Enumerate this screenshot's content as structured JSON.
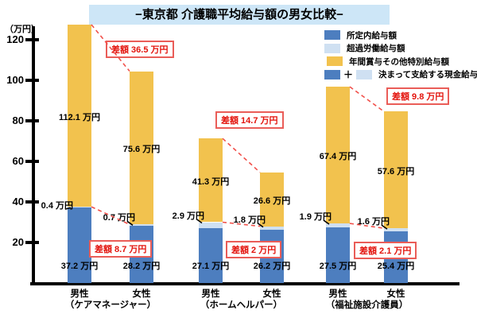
{
  "title": "−東京都 介護職平均給与額の男女比較−",
  "y_axis": {
    "unit_label": "（万円）"
  },
  "legend": {
    "items": [
      {
        "label": "所定内給与額",
        "swatches": [
          "base"
        ]
      },
      {
        "label": "超過労働給与額",
        "swatches": [
          "overtime"
        ]
      },
      {
        "label": "年間賞与その他特別給与額",
        "swatches": [
          "bonus"
        ]
      },
      {
        "label": "決まって支給する現金給与額",
        "swatches": [
          "base",
          "overtime"
        ],
        "joiner": "＋"
      }
    ]
  },
  "colors": {
    "base": "#4d7ebf",
    "overtime": "#cfe0f2",
    "bonus": "#f2c24e",
    "diff_text": "#e3120b",
    "diff_border": "#ea5d58",
    "dash_line": "#f1504a",
    "pointer_line": "#000000",
    "title_bg": "#cde6f7",
    "axis": "#000000"
  },
  "chart_data": {
    "type": "bar",
    "stacked": true,
    "title": "−東京都 介護職平均給与額の男女比較−",
    "unit": "万円",
    "value_suffix": " 万円",
    "ylim": [
      0,
      128
    ],
    "yticks": [
      20,
      40,
      60,
      80,
      100,
      120
    ],
    "grid": false,
    "legend_position": "top-right",
    "series_names": [
      "所定内給与額",
      "超過労働給与額",
      "年間賞与その他特別給与額"
    ],
    "groups": [
      {
        "name": "（ケアマネージャー）",
        "bars": [
          {
            "gender": "男性",
            "base": 37.2,
            "overtime": 0.4,
            "bonus": 112.1
          },
          {
            "gender": "女性",
            "base": 28.2,
            "overtime": 0.7,
            "bonus": 75.6
          }
        ],
        "bonus_diff_label": "差額 36.5 万円",
        "cash_diff_label": "差額 8.7 万円"
      },
      {
        "name": "（ホームヘルパー）",
        "bars": [
          {
            "gender": "男性",
            "base": 27.1,
            "overtime": 2.9,
            "bonus": 41.3
          },
          {
            "gender": "女性",
            "base": 26.2,
            "overtime": 1.8,
            "bonus": 26.6
          }
        ],
        "bonus_diff_label": "差額 14.7 万円",
        "cash_diff_label": "差額 2 万円"
      },
      {
        "name": "（福祉施設介護員）",
        "bars": [
          {
            "gender": "男性",
            "base": 27.5,
            "overtime": 1.9,
            "bonus": 67.4
          },
          {
            "gender": "女性",
            "base": 25.4,
            "overtime": 1.6,
            "bonus": 57.6
          }
        ],
        "bonus_diff_label": "差額 9.8 万円",
        "cash_diff_label": "差額 2.1 万円"
      }
    ]
  }
}
